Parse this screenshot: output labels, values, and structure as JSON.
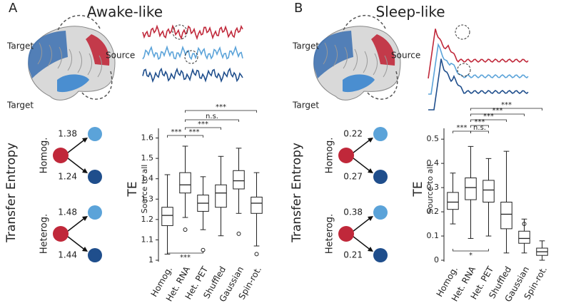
{
  "chart_data": [
    {
      "type": "box",
      "panel_label": "A",
      "title": "Awake-like",
      "brain_labels": [
        "Target",
        "Source",
        "Target"
      ],
      "side_label": "Transfer Entropy",
      "diagram": [
        {
          "label": "Homog.",
          "values": [
            1.38,
            1.24
          ]
        },
        {
          "label": "Heterog.",
          "values": [
            1.48,
            1.44
          ]
        }
      ],
      "ylabel": "TE",
      "ylabel_sub": "Source to all",
      "categories": [
        "Homog.",
        "Het. RNA",
        "Het. PET",
        "Shuffled",
        "Gaussian",
        "Spin-rot."
      ],
      "boxes": [
        {
          "min": 1.03,
          "q1": 1.17,
          "median": 1.22,
          "q3": 1.26,
          "max": 1.42,
          "outliers": []
        },
        {
          "min": 1.21,
          "q1": 1.33,
          "median": 1.37,
          "q3": 1.43,
          "max": 1.56,
          "outliers": [
            1.15
          ]
        },
        {
          "min": 1.15,
          "q1": 1.24,
          "median": 1.28,
          "q3": 1.32,
          "max": 1.41,
          "outliers": [
            1.05
          ]
        },
        {
          "min": 1.12,
          "q1": 1.26,
          "median": 1.33,
          "q3": 1.37,
          "max": 1.51,
          "outliers": []
        },
        {
          "min": 1.23,
          "q1": 1.35,
          "median": 1.39,
          "q3": 1.44,
          "max": 1.55,
          "outliers": [
            1.13
          ]
        },
        {
          "min": 1.07,
          "q1": 1.23,
          "median": 1.28,
          "q3": 1.31,
          "max": 1.43,
          "outliers": [
            1.03
          ]
        }
      ],
      "annotations": [
        "***",
        "n.s.",
        "***",
        "***",
        "***",
        "***"
      ],
      "ylim": [
        1,
        1.63
      ],
      "yticks": [
        1,
        1.1,
        1.2,
        1.3,
        1.4,
        1.5,
        1.6
      ]
    },
    {
      "type": "box",
      "panel_label": "B",
      "title": "Sleep-like",
      "brain_labels": [
        "Target",
        "Source",
        "Target"
      ],
      "side_label": "Transfer Entropy",
      "diagram": [
        {
          "label": "Homog.",
          "values": [
            0.22,
            0.27
          ]
        },
        {
          "label": "Heterog.",
          "values": [
            0.38,
            0.21
          ]
        }
      ],
      "ylabel": "TE",
      "ylabel_sub": "Source to all",
      "categories": [
        "Homog.",
        "Het. RNA",
        "Het. PET",
        "Shuffled",
        "Gaussian",
        "Spin-rot."
      ],
      "boxes": [
        {
          "min": 0.15,
          "q1": 0.21,
          "median": 0.24,
          "q3": 0.28,
          "max": 0.36,
          "outliers": []
        },
        {
          "min": 0.09,
          "q1": 0.25,
          "median": 0.3,
          "q3": 0.34,
          "max": 0.47,
          "outliers": []
        },
        {
          "min": 0.1,
          "q1": 0.24,
          "median": 0.29,
          "q3": 0.33,
          "max": 0.42,
          "outliers": []
        },
        {
          "min": 0.03,
          "q1": 0.13,
          "median": 0.19,
          "q3": 0.24,
          "max": 0.45,
          "outliers": []
        },
        {
          "min": 0.03,
          "q1": 0.07,
          "median": 0.09,
          "q3": 0.12,
          "max": 0.17,
          "outliers": [
            0.15
          ]
        },
        {
          "min": 0,
          "q1": 0.02,
          "median": 0.035,
          "q3": 0.05,
          "max": 0.08,
          "outliers": []
        }
      ],
      "annotations": [
        "***",
        "***",
        "***",
        "***",
        "n.s.",
        "***",
        "*"
      ],
      "ylim": [
        0,
        0.53
      ],
      "yticks": [
        0,
        0.1,
        0.2,
        0.3,
        0.4,
        0.5
      ]
    }
  ]
}
